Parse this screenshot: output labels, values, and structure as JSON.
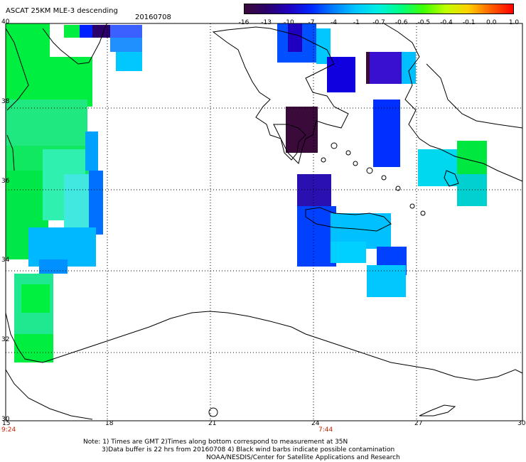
{
  "header": {
    "title": "ASCAT 25KM MLE-3 descending",
    "date": "20160708"
  },
  "colorbar": {
    "labels": [
      "-16",
      "-13",
      "-10",
      "-7",
      "-4",
      "-1",
      "-0.7",
      "-0.6",
      "-0.5",
      "-0.4",
      "-0.1",
      "0.0",
      "1.0"
    ],
    "colors": [
      "#3a0a3a",
      "#2a006a",
      "#2000c0",
      "#0028ff",
      "#0080ff",
      "#00c8ff",
      "#00f0e0",
      "#00ff80",
      "#40ff00",
      "#c0ff00",
      "#ffd000",
      "#ff6000",
      "#ff0000"
    ]
  },
  "axes": {
    "lat_labels": [
      "40",
      "38",
      "36",
      "34",
      "32",
      "30"
    ],
    "lon_labels": [
      "15",
      "18",
      "21",
      "24",
      "27",
      "30"
    ],
    "lat_values": [
      40,
      38,
      36,
      34,
      32,
      30
    ],
    "lon_values": [
      15,
      18,
      21,
      24,
      27,
      30
    ],
    "time_labels": [
      "9:24",
      "7:44"
    ]
  },
  "notes": {
    "line1": "Note: 1) Times are GMT 2)Times along bottom correspond to measurement at 35N",
    "line2": "3)Data buffer is 22 hrs from 20160708 4) Black wind barbs indicate possible contamination",
    "line3": "NOAA/NESDIS/Center for Satellite Applications and Research"
  }
}
